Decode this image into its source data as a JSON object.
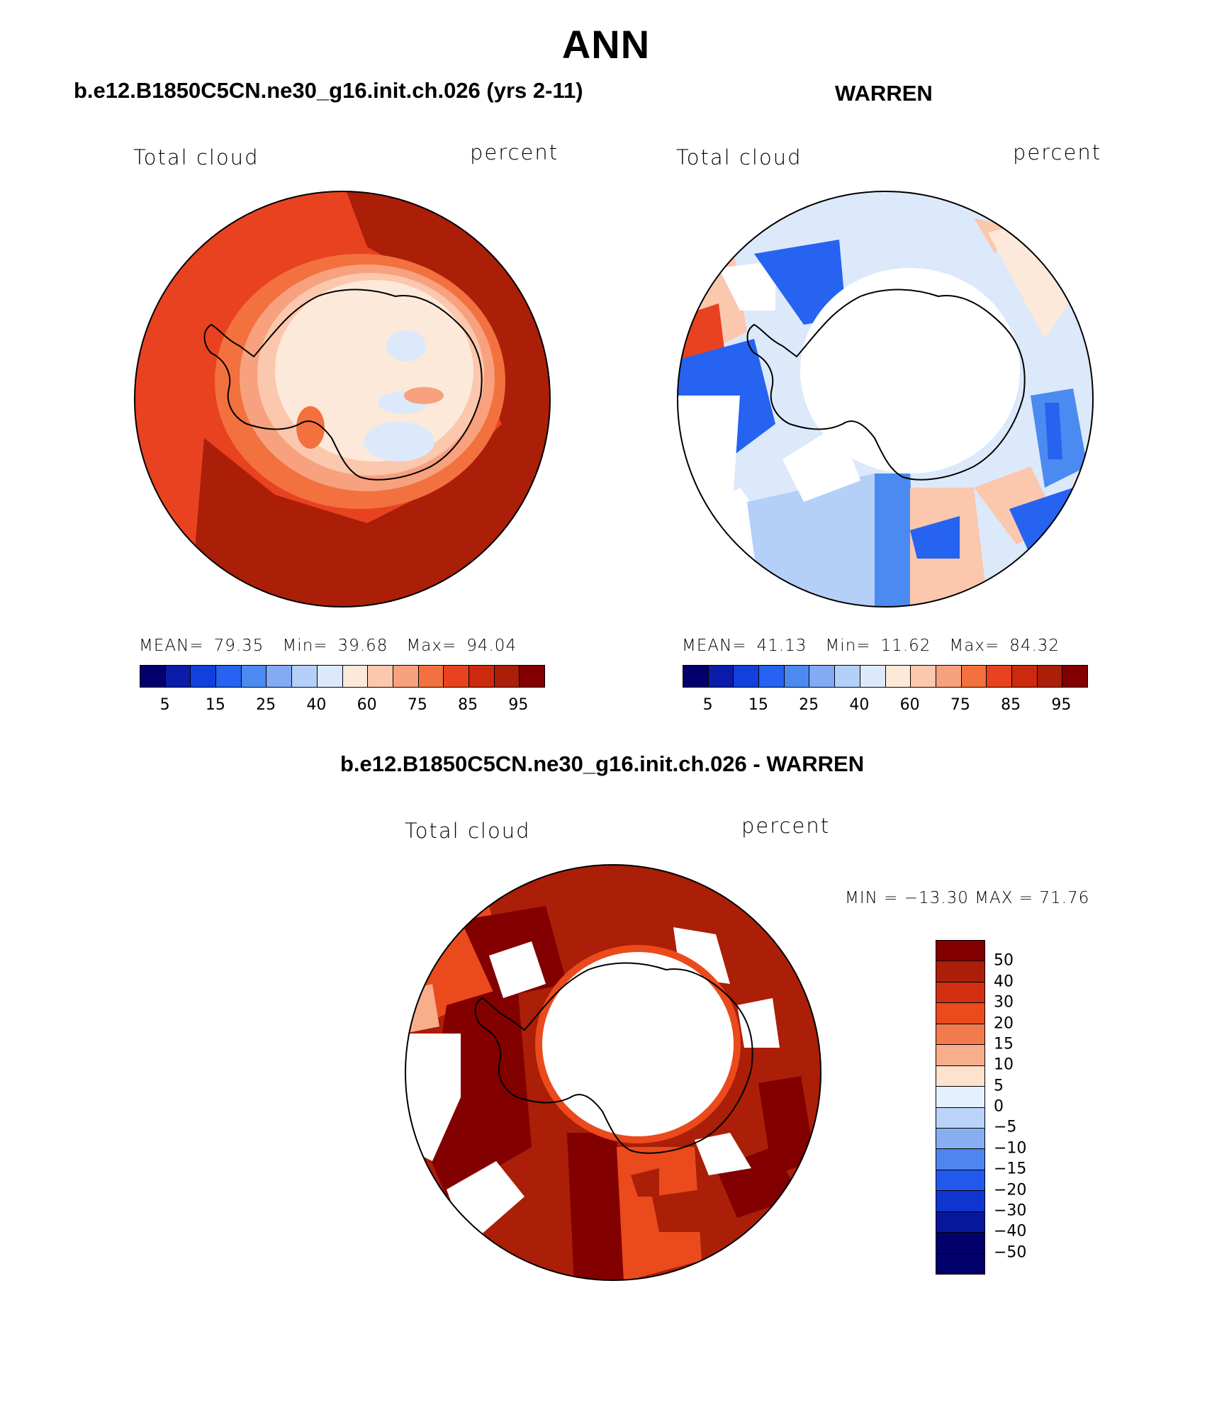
{
  "figure": {
    "title": "ANN"
  },
  "colors": {
    "scale15": [
      "#03006d",
      "#0b1ca8",
      "#1140dc",
      "#2563f0",
      "#4b8af0",
      "#82aaf5",
      "#b4cff8",
      "#dce9fb",
      "#fde9d9",
      "#fbc7ad",
      "#f7a17e",
      "#f2713e",
      "#e84220",
      "#cc2a0e",
      "#ab1e08",
      "#820000"
    ],
    "diff": [
      "#820000",
      "#ab1e08",
      "#d23010",
      "#ea4a1c",
      "#f37a4c",
      "#f8ae8a",
      "#fde3cd",
      "#e4f0fd",
      "#bad3f8",
      "#88aef2",
      "#4f85ef",
      "#2358ec",
      "#0f35d0",
      "#07179b",
      "#02006a"
    ]
  },
  "panels": {
    "model": {
      "title": "b.e12.B1850C5CN.ne30_g16.init.ch.026 (yrs 2-11)",
      "left_label": "Total cloud",
      "right_label": "percent",
      "stats": {
        "mean_label": "MEAN=",
        "mean": "79.35",
        "min_label": "Min=",
        "min": "39.68",
        "max_label": "Max=",
        "max": "94.04"
      },
      "colorbar_ticks": [
        "5",
        "15",
        "25",
        "40",
        "60",
        "75",
        "85",
        "95"
      ]
    },
    "obs": {
      "title": "WARREN",
      "left_label": "Total cloud",
      "right_label": "percent",
      "stats": {
        "mean_label": "MEAN=",
        "mean": "41.13",
        "min_label": "Min=",
        "min": "11.62",
        "max_label": "Max=",
        "max": "84.32"
      },
      "colorbar_ticks": [
        "5",
        "15",
        "25",
        "40",
        "60",
        "75",
        "85",
        "95"
      ]
    },
    "diff": {
      "title": "b.e12.B1850C5CN.ne30_g16.init.ch.026 - WARREN",
      "left_label": "Total cloud",
      "right_label": "percent",
      "minmax": "MIN = −13.30 MAX =   71.76",
      "colorbar_ticks": [
        "50",
        "40",
        "30",
        "20",
        "15",
        "10",
        "5",
        "0",
        "−5",
        "−10",
        "−15",
        "−20",
        "−30",
        "−40",
        "−50"
      ]
    }
  }
}
